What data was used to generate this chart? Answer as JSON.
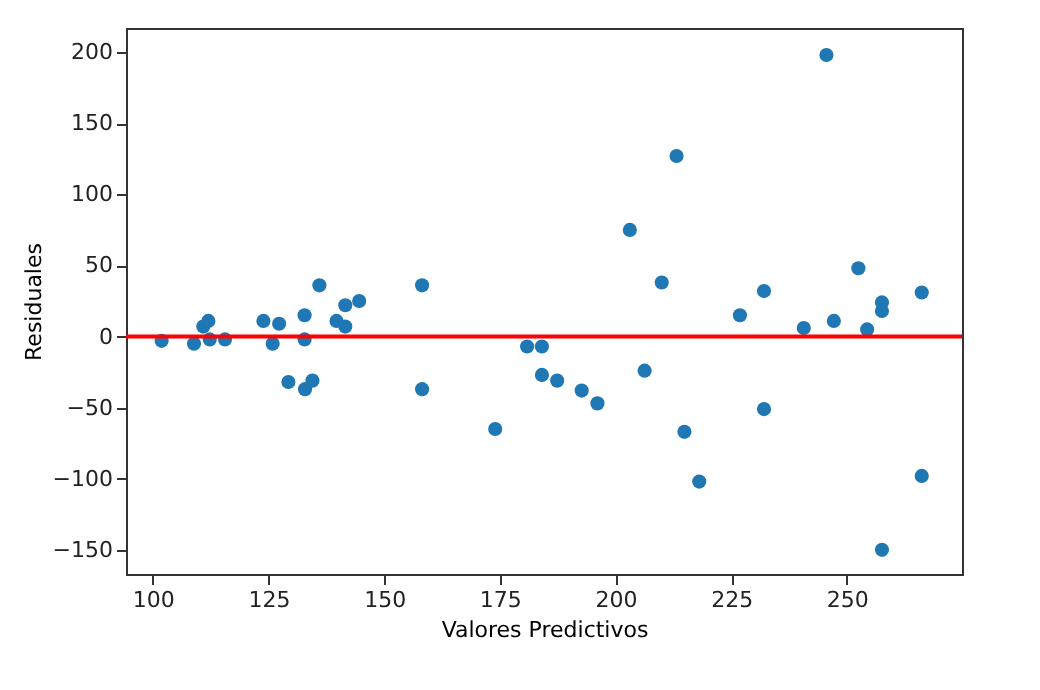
{
  "chart_data": {
    "type": "scatter",
    "xlabel": "Valores Predictivos",
    "ylabel": "Residuales",
    "x": [
      101.9,
      108.9,
      110.9,
      112.0,
      112.3,
      115.6,
      123.9,
      127.3,
      125.9,
      132.8,
      132.8,
      129.3,
      132.9,
      134.5,
      136.0,
      139.7,
      141.6,
      141.6,
      144.6,
      158.2,
      158.2,
      174.0,
      180.9,
      184.1,
      184.1,
      187.4,
      192.7,
      196.1,
      203.1,
      206.3,
      210.0,
      213.2,
      214.9,
      218.1,
      245.6,
      252.5,
      232.1,
      226.9,
      240.7,
      247.2,
      254.4,
      257.6,
      257.6,
      266.2,
      232.1,
      266.2,
      257.6
    ],
    "series": [
      {
        "color": "#1f77b4",
        "values": [
          -3,
          -5,
          7,
          11,
          -2,
          -2,
          11,
          9,
          -5,
          15,
          -2,
          -32,
          -37,
          -31,
          36,
          11,
          7,
          22,
          25,
          36,
          -37,
          -65,
          -7,
          -7,
          -27,
          -31,
          -38,
          -47,
          75,
          -24,
          38,
          127,
          -67,
          -102,
          198,
          48,
          32,
          15,
          6,
          11,
          5,
          24,
          18,
          31,
          -51,
          -98,
          -150
        ]
      }
    ],
    "xlim": [
      94.2,
      274.9
    ],
    "ylim": [
      -167,
      217
    ],
    "xticks": [
      100,
      125,
      150,
      175,
      200,
      225,
      250
    ],
    "yticks": [
      -150,
      -100,
      -50,
      0,
      50,
      100,
      150,
      200
    ],
    "ref_lines": [
      {
        "axis": "y",
        "value": 0,
        "color": "#ff0000"
      }
    ],
    "marker": "circle",
    "grid": false
  }
}
